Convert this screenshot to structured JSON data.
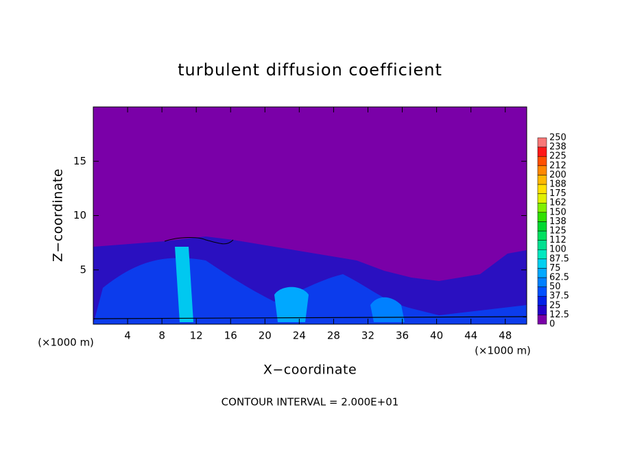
{
  "chart_data": {
    "type": "contour",
    "title": "turbulent diffusion coefficient",
    "xlabel": "X−coordinate",
    "ylabel": "Z−coordinate",
    "x_unit": "(×1000 m)",
    "note": "CONTOUR INTERVAL = 2.000E+01",
    "xlim": [
      0,
      50.5
    ],
    "ylim": [
      0,
      20
    ],
    "xticks": [
      4,
      8,
      12,
      16,
      20,
      24,
      28,
      32,
      36,
      40,
      44,
      48
    ],
    "yticks": [
      5,
      10,
      15
    ],
    "background_color": "#7a00a8",
    "colorbar": {
      "levels": [
        0,
        12.5,
        25,
        37.5,
        50,
        62.5,
        75,
        87.5,
        100,
        112,
        125,
        138,
        150,
        162,
        175,
        188,
        200,
        212,
        225,
        238,
        250
      ],
      "colors": [
        "#7a00a8",
        "#2400c8",
        "#0020e8",
        "#0050ff",
        "#0080ff",
        "#00a8ff",
        "#00d0f0",
        "#00e8c0",
        "#00e090",
        "#00e060",
        "#00d830",
        "#30e000",
        "#80f000",
        "#e0f000",
        "#ffe000",
        "#ffb800",
        "#ff8800",
        "#ff5000",
        "#ff1818",
        "#f87878"
      ]
    }
  }
}
